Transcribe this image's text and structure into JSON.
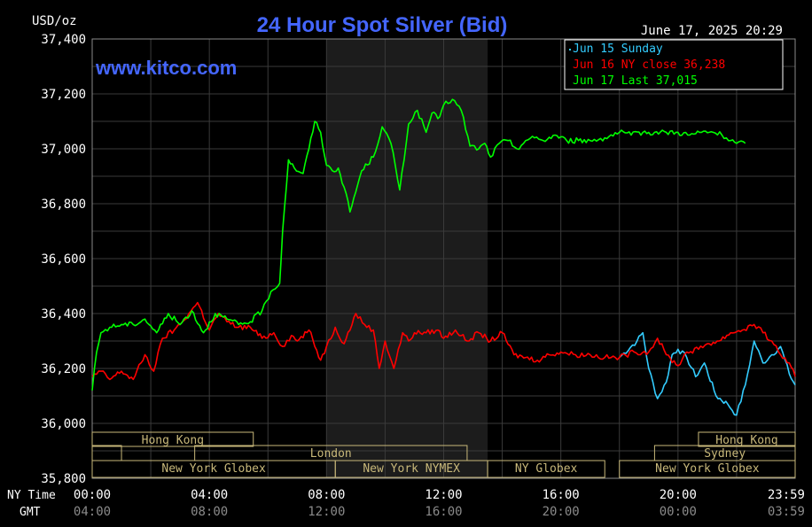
{
  "chart_data": {
    "type": "line",
    "title": "24 Hour Spot Silver (Bid)",
    "unit_label": "USD/oz",
    "timestamp": "June 17, 2025 20:29",
    "watermark": "www.kitco.com",
    "ylim": [
      35.8,
      37.4
    ],
    "y_ticks": [
      "37,400",
      "37,200",
      "37,000",
      "36,800",
      "36,600",
      "36,400",
      "36,200",
      "36,000",
      "35,800"
    ],
    "x_row_label": "NY Time",
    "x_ticks": [
      "00:00",
      "04:00",
      "08:00",
      "12:00",
      "16:00",
      "20:00",
      "23:59"
    ],
    "gmt_label": "GMT",
    "gmt_ticks": [
      "04:00",
      "08:00",
      "12:00",
      "16:00",
      "20:00",
      "00:00",
      "03:59"
    ],
    "legend": [
      "Jun 15 Sunday",
      "Jun 16 NY close 36,238",
      "Jun 17 Last 37,015"
    ],
    "colors": {
      "sunday": "#33ccff",
      "jun16": "#ff0000",
      "jun17": "#00ff00",
      "grid": "#3a3a3a",
      "text": "#ffffff",
      "title": "#4466ff",
      "sessions": "#c8b87a",
      "shade": "#1c1c1c"
    },
    "sessions": [
      "Hong Kong",
      "London",
      "New York Globex",
      "New York NYMEX",
      "NY Globex",
      "Hong Kong",
      "Sydney",
      "New York Globex"
    ],
    "series": [
      {
        "name": "Jun 15 Sunday",
        "x": [
          18.0,
          18.6,
          18.8,
          19.0,
          19.3,
          19.6,
          19.8,
          20.0,
          20.3,
          20.6,
          20.9,
          21.3,
          21.7,
          22.0,
          22.3,
          22.6,
          22.9,
          23.2,
          23.5,
          23.8,
          24.0
        ],
        "values": [
          36.24,
          36.3,
          36.33,
          36.2,
          36.09,
          36.15,
          36.25,
          36.27,
          36.24,
          36.17,
          36.22,
          36.1,
          36.07,
          36.03,
          36.14,
          36.3,
          36.22,
          36.25,
          36.28,
          36.18,
          36.14
        ]
      },
      {
        "name": "Jun 16 NY close 36,238",
        "x": [
          0,
          0.3,
          0.6,
          1.0,
          1.4,
          1.8,
          2.1,
          2.4,
          2.8,
          3.0,
          3.3,
          3.6,
          4.0,
          4.3,
          4.6,
          5.0,
          5.4,
          5.8,
          6.2,
          6.5,
          6.8,
          7.0,
          7.4,
          7.8,
          8.0,
          8.3,
          8.6,
          9.0,
          9.3,
          9.6,
          9.8,
          10.0,
          10.3,
          10.6,
          10.8,
          11.0,
          11.4,
          11.8,
          12.0,
          12.4,
          12.8,
          13.2,
          13.6,
          14.0,
          14.4,
          14.8,
          15.2,
          15.6,
          16.0,
          16.5,
          17.0,
          17.5,
          18.0,
          18.5,
          19.0,
          19.3,
          19.6,
          20.0,
          20.3,
          20.7,
          21.0,
          21.4,
          21.8,
          22.2,
          22.6,
          22.9,
          23.2,
          23.5,
          23.8,
          24.0
        ],
        "values": [
          36.17,
          36.19,
          36.16,
          36.19,
          36.16,
          36.25,
          36.19,
          36.31,
          36.34,
          36.36,
          36.4,
          36.44,
          36.34,
          36.4,
          36.37,
          36.35,
          36.35,
          36.31,
          36.33,
          36.28,
          36.32,
          36.3,
          36.34,
          36.23,
          36.28,
          36.35,
          36.29,
          36.4,
          36.36,
          36.34,
          36.2,
          36.3,
          36.2,
          36.33,
          36.3,
          36.33,
          36.33,
          36.34,
          36.31,
          36.34,
          36.3,
          36.33,
          36.3,
          36.33,
          36.25,
          36.24,
          36.23,
          36.25,
          36.26,
          36.25,
          36.25,
          36.24,
          36.24,
          36.26,
          36.26,
          36.31,
          36.25,
          36.21,
          36.26,
          36.27,
          36.29,
          36.3,
          36.33,
          36.34,
          36.36,
          36.33,
          36.3,
          36.25,
          36.22,
          36.17
        ]
      },
      {
        "name": "Jun 17 Last 37,015",
        "x": [
          0,
          0.15,
          0.3,
          0.6,
          1.0,
          1.4,
          1.8,
          2.2,
          2.6,
          3.0,
          3.4,
          3.8,
          4.2,
          4.6,
          5.0,
          5.4,
          5.8,
          6.1,
          6.4,
          6.5,
          6.7,
          6.9,
          7.2,
          7.4,
          7.6,
          7.8,
          8.0,
          8.2,
          8.4,
          8.6,
          8.8,
          9.2,
          9.6,
          9.9,
          10.2,
          10.5,
          10.8,
          11.1,
          11.4,
          11.6,
          11.8,
          12.0,
          12.3,
          12.6,
          12.9,
          13.2,
          13.4,
          13.6,
          13.9,
          14.2,
          14.5,
          14.8,
          15.1,
          15.4,
          15.8,
          16.2,
          16.6,
          17.0,
          17.5,
          18.0,
          18.4,
          18.8,
          19.2,
          19.6,
          20.0,
          20.4,
          20.8,
          21.2,
          21.5,
          21.8,
          22.0,
          22.3
        ],
        "values": [
          36.12,
          36.26,
          36.33,
          36.35,
          36.36,
          36.36,
          36.38,
          36.33,
          36.4,
          36.36,
          36.41,
          36.33,
          36.4,
          36.38,
          36.36,
          36.37,
          36.41,
          36.48,
          36.51,
          36.7,
          36.96,
          36.93,
          36.91,
          37.0,
          37.1,
          37.06,
          36.94,
          36.92,
          36.93,
          36.86,
          36.77,
          36.92,
          36.97,
          37.08,
          37.02,
          36.85,
          37.09,
          37.14,
          37.06,
          37.13,
          37.11,
          37.16,
          37.18,
          37.14,
          37.01,
          37.0,
          37.02,
          36.97,
          37.02,
          37.03,
          37.0,
          37.03,
          37.04,
          37.03,
          37.05,
          37.03,
          37.03,
          37.03,
          37.04,
          37.06,
          37.05,
          37.06,
          37.06,
          37.06,
          37.06,
          37.05,
          37.06,
          37.06,
          37.05,
          37.03,
          37.02,
          37.02
        ]
      }
    ]
  }
}
